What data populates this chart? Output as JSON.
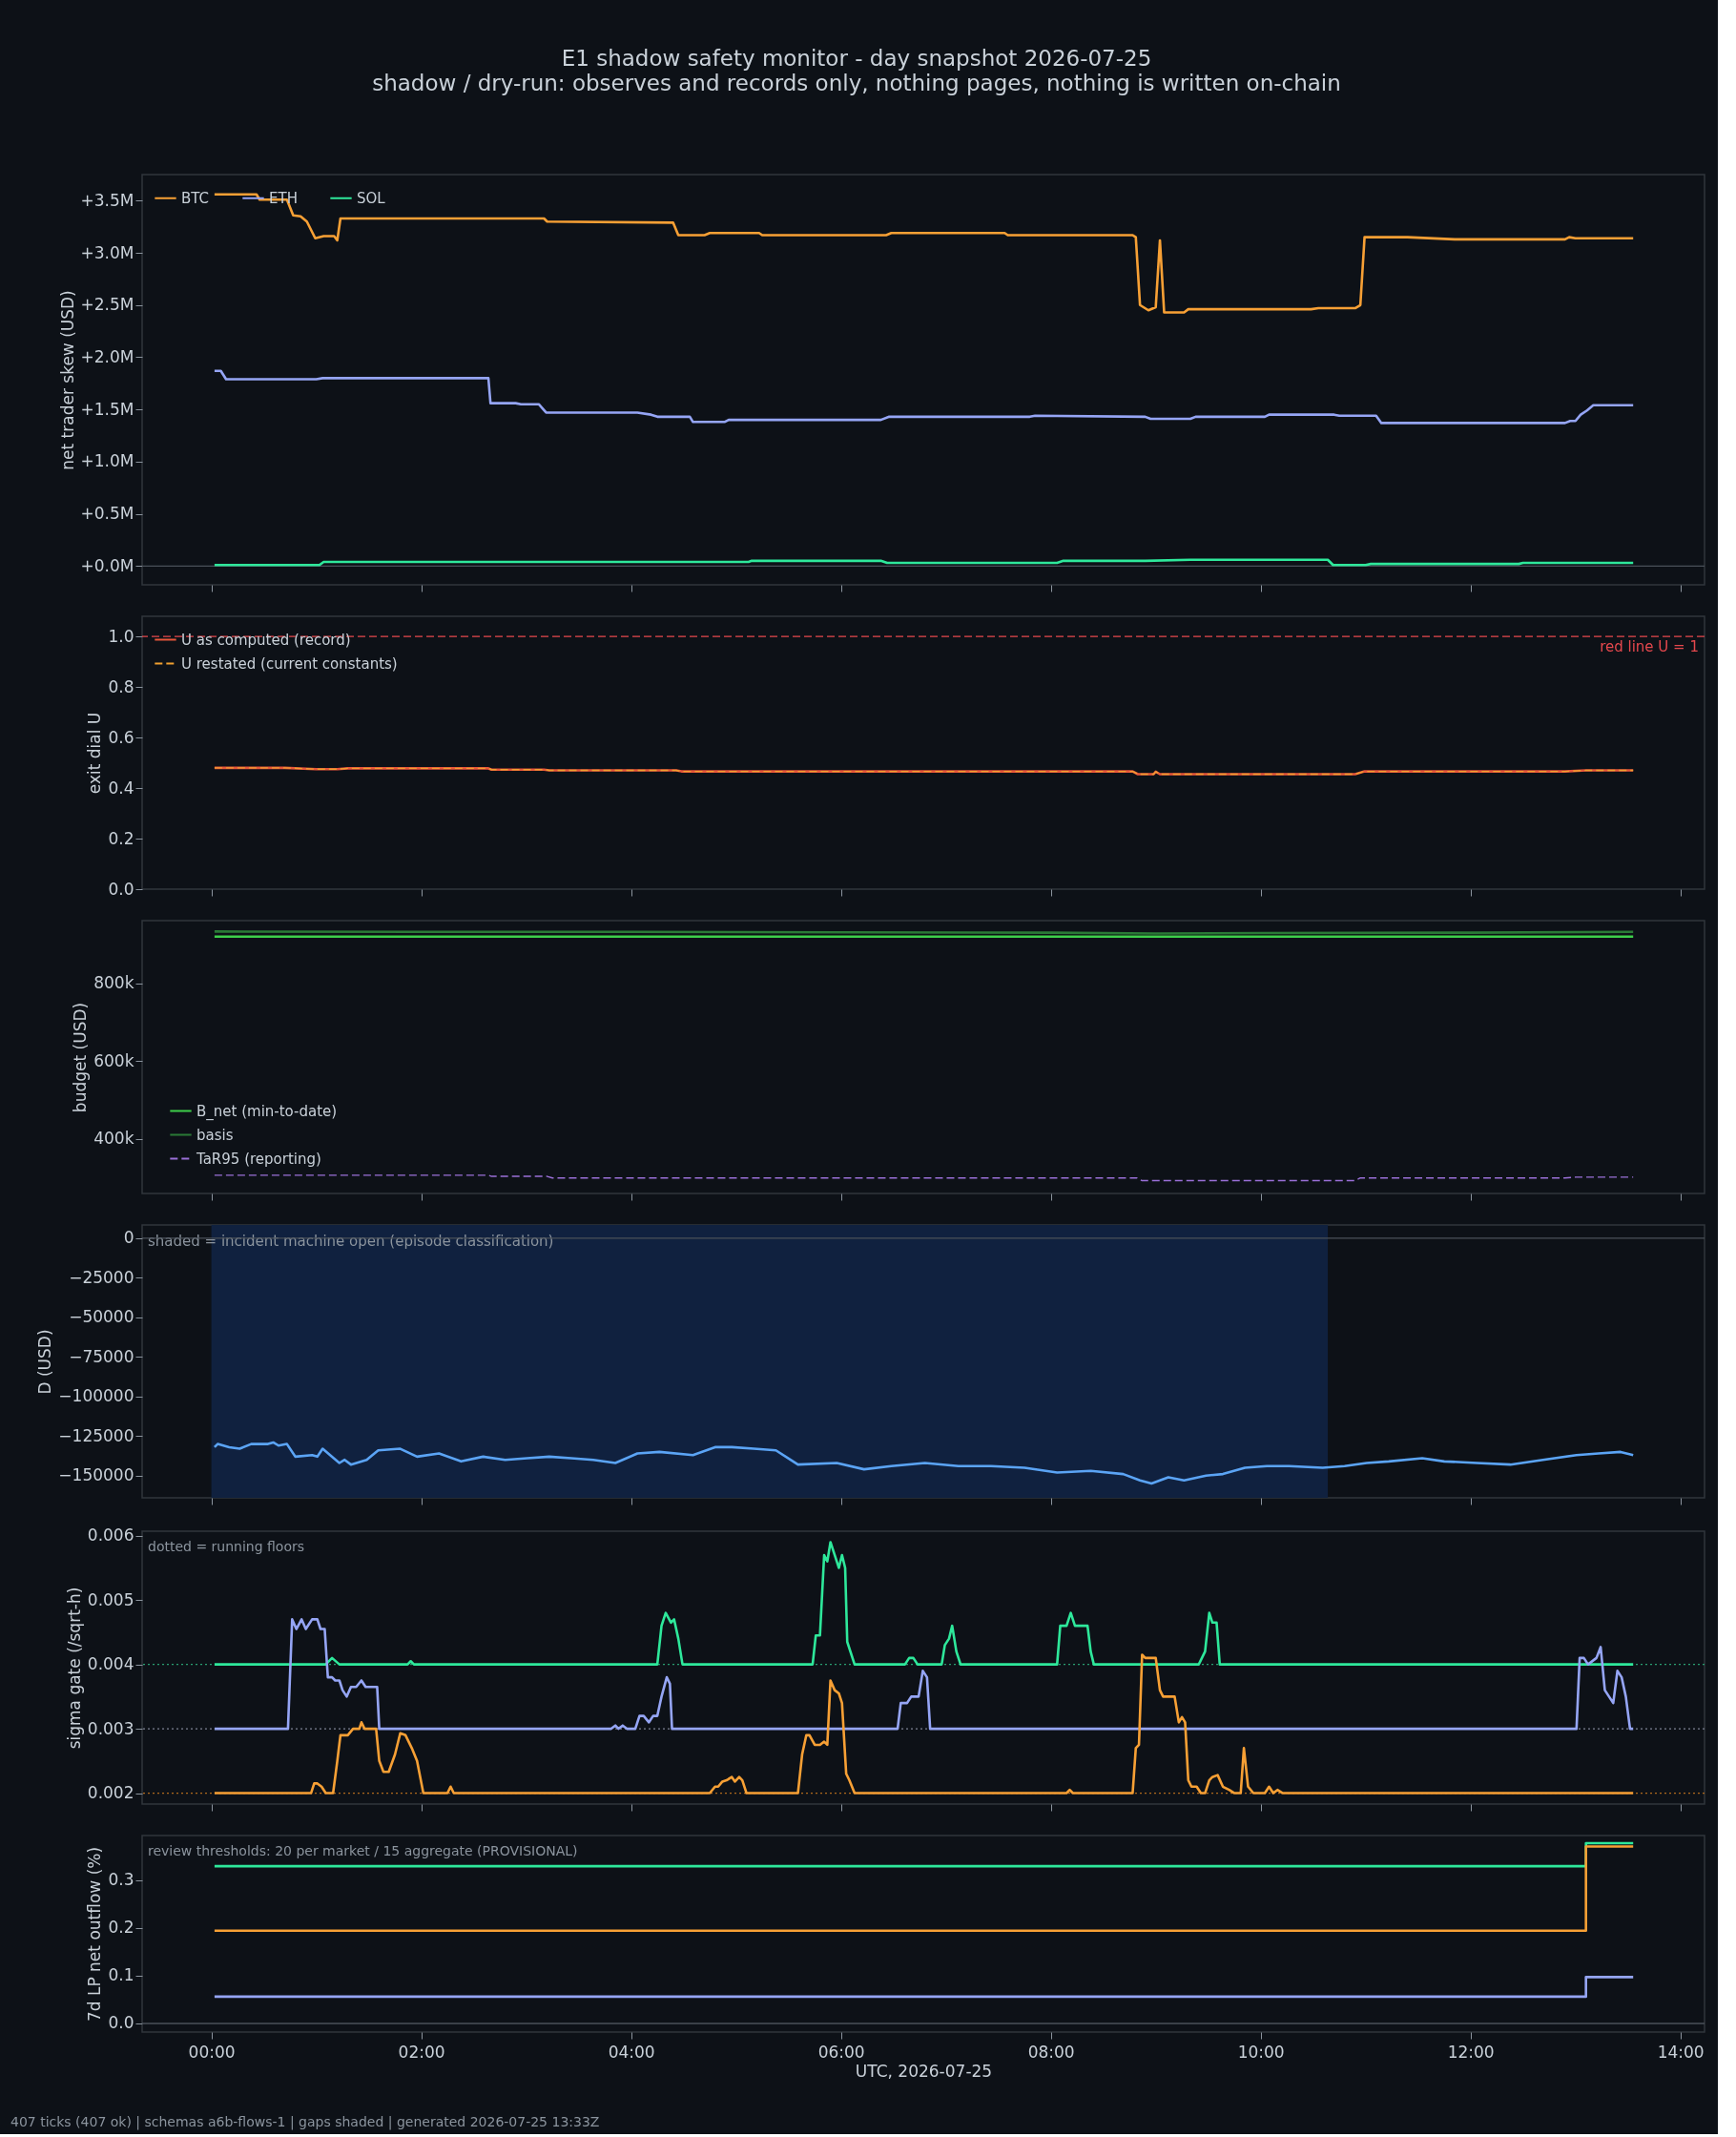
{
  "chart_data": [
    {
      "type": "line",
      "title": "E1 shadow safety monitor - day snapshot 2026-07-25",
      "subtitle": "shadow / dry-run: observes and records only, nothing pages, nothing is written on-chain",
      "ylabel": "net trader skew (USD)",
      "xlim": [
        -0.66,
        14.23
      ],
      "xticks": [
        {
          "value": 0,
          "label": null
        },
        {
          "value": 2,
          "label": null
        },
        {
          "value": 4,
          "label": null
        },
        {
          "value": 6,
          "label": null
        },
        {
          "value": 8,
          "label": null
        },
        {
          "value": 10,
          "label": null
        },
        {
          "value": 12,
          "label": null
        },
        {
          "value": 14,
          "label": null
        }
      ],
      "ylim": [
        -180000,
        3750000
      ],
      "yticks": [
        {
          "value": 0,
          "label": "+0.0M"
        },
        {
          "value": 500000,
          "label": "+0.5M"
        },
        {
          "value": 1000000,
          "label": "+1.0M"
        },
        {
          "value": 1500000,
          "label": "+1.5M"
        },
        {
          "value": 2000000,
          "label": "+2.0M"
        },
        {
          "value": 2500000,
          "label": "+2.5M"
        },
        {
          "value": 3000000,
          "label": "+3.0M"
        },
        {
          "value": 3500000,
          "label": "+3.5M"
        }
      ],
      "tick_labels": "y",
      "legend": "top left",
      "ref_lines": [
        {
          "axis": "y",
          "value": 0,
          "color": "#4a5059"
        }
      ],
      "series": [
        {
          "name": "BTC",
          "color": "#f7a035",
          "x": [
            0.03,
            0.43,
            0.46,
            0.72,
            0.78,
            0.85,
            0.91,
            0.99,
            1.07,
            1.17,
            1.2,
            1.23,
            3.17,
            3.2,
            4.4,
            4.45,
            4.7,
            4.75,
            5.22,
            5.25,
            6.43,
            6.48,
            7.56,
            7.59,
            8.78,
            8.81,
            8.85,
            8.93,
            9.0,
            9.04,
            9.08,
            9.27,
            9.31,
            10.48,
            10.55,
            10.9,
            10.95,
            10.99,
            11.4,
            11.85,
            12.9,
            12.94,
            13.0,
            13.55
          ],
          "values": [
            3560000,
            3560000,
            3510000,
            3510000,
            3360000,
            3350000,
            3300000,
            3140000,
            3160000,
            3160000,
            3120000,
            3330000,
            3330000,
            3300000,
            3290000,
            3170000,
            3170000,
            3190000,
            3190000,
            3170000,
            3170000,
            3190000,
            3190000,
            3170000,
            3170000,
            3150000,
            2500000,
            2450000,
            2480000,
            3120000,
            2430000,
            2430000,
            2460000,
            2460000,
            2470000,
            2470000,
            2500000,
            3150000,
            3150000,
            3130000,
            3130000,
            3150000,
            3140000,
            3140000
          ]
        },
        {
          "name": "ETH",
          "color": "#95a5f5",
          "x": [
            0.03,
            0.09,
            0.14,
            1.0,
            1.06,
            2.64,
            2.66,
            2.9,
            2.95,
            3.12,
            3.19,
            4.06,
            4.19,
            4.25,
            4.56,
            4.59,
            4.89,
            4.93,
            6.38,
            6.46,
            7.8,
            7.85,
            8.9,
            8.95,
            9.33,
            9.38,
            10.04,
            10.08,
            10.7,
            10.75,
            11.1,
            11.15,
            12.9,
            12.95,
            13.0,
            13.05,
            13.11,
            13.17,
            13.55
          ],
          "values": [
            1870000,
            1870000,
            1790000,
            1790000,
            1800000,
            1800000,
            1560000,
            1560000,
            1550000,
            1550000,
            1470000,
            1470000,
            1450000,
            1430000,
            1430000,
            1380000,
            1380000,
            1400000,
            1400000,
            1430000,
            1430000,
            1440000,
            1430000,
            1410000,
            1410000,
            1430000,
            1430000,
            1450000,
            1450000,
            1440000,
            1440000,
            1370000,
            1370000,
            1390000,
            1390000,
            1450000,
            1490000,
            1540000,
            1540000
          ]
        },
        {
          "name": "SOL",
          "color": "#2ee89b",
          "x": [
            0.03,
            1.03,
            1.07,
            5.12,
            5.15,
            6.38,
            6.44,
            8.06,
            8.12,
            8.9,
            9.33,
            10.64,
            10.69,
            11.0,
            11.05,
            12.46,
            12.5,
            13.55
          ],
          "values": [
            10000,
            10000,
            40000,
            40000,
            50000,
            50000,
            30000,
            30000,
            50000,
            50000,
            60000,
            60000,
            10000,
            10000,
            20000,
            20000,
            30000,
            30000
          ]
        }
      ]
    },
    {
      "type": "line",
      "ylabel": "exit dial U",
      "xlim": [
        -0.66,
        14.23
      ],
      "xticks": [
        {
          "value": 0,
          "label": null
        },
        {
          "value": 2,
          "label": null
        },
        {
          "value": 4,
          "label": null
        },
        {
          "value": 6,
          "label": null
        },
        {
          "value": 8,
          "label": null
        },
        {
          "value": 10,
          "label": null
        },
        {
          "value": 12,
          "label": null
        },
        {
          "value": 14,
          "label": null
        }
      ],
      "ylim": [
        0,
        1.08
      ],
      "yticks": [
        {
          "value": 0,
          "label": "0.0"
        },
        {
          "value": 0.2,
          "label": "0.2"
        },
        {
          "value": 0.4,
          "label": "0.4"
        },
        {
          "value": 0.6,
          "label": "0.6"
        },
        {
          "value": 0.8,
          "label": "0.8"
        },
        {
          "value": 1,
          "label": "1.0"
        }
      ],
      "tick_labels": "y",
      "legend": "top left",
      "ref_lines": [
        {
          "axis": "y",
          "value": 1,
          "label": "red line U = 1",
          "color": "#e5484d",
          "line_style": "dashed"
        }
      ],
      "series": [
        {
          "name": "U as computed (record)",
          "color": "#e8563a",
          "x": [
            0.03,
            0.7,
            1.0,
            1.2,
            1.3,
            2.64,
            2.67,
            3.17,
            3.22,
            4.43,
            4.48,
            8.78,
            8.83,
            8.98,
            9.0,
            9.04,
            9.08,
            10.9,
            10.99,
            12.9,
            13.1,
            13.55
          ],
          "values": [
            0.48,
            0.48,
            0.475,
            0.475,
            0.478,
            0.478,
            0.473,
            0.473,
            0.47,
            0.47,
            0.466,
            0.466,
            0.455,
            0.455,
            0.465,
            0.455,
            0.455,
            0.455,
            0.466,
            0.466,
            0.47,
            0.47
          ]
        },
        {
          "name": "U restated (current constants)",
          "color": "#f0a030",
          "line_style": "dashed",
          "x": [
            0.03,
            0.7,
            1.0,
            1.2,
            1.3,
            2.64,
            2.67,
            3.17,
            3.22,
            4.43,
            4.48,
            8.78,
            8.83,
            8.98,
            9.0,
            9.04,
            9.08,
            10.9,
            10.99,
            12.9,
            13.1,
            13.55
          ],
          "values": [
            0.48,
            0.48,
            0.475,
            0.475,
            0.478,
            0.478,
            0.473,
            0.473,
            0.47,
            0.47,
            0.466,
            0.466,
            0.455,
            0.455,
            0.465,
            0.455,
            0.455,
            0.455,
            0.466,
            0.466,
            0.47,
            0.47
          ]
        }
      ]
    },
    {
      "type": "line",
      "ylabel": "budget (USD)",
      "xlim": [
        -0.66,
        14.23
      ],
      "xticks": [
        {
          "value": 0,
          "label": null
        },
        {
          "value": 2,
          "label": null
        },
        {
          "value": 4,
          "label": null
        },
        {
          "value": 6,
          "label": null
        },
        {
          "value": 8,
          "label": null
        },
        {
          "value": 10,
          "label": null
        },
        {
          "value": 12,
          "label": null
        },
        {
          "value": 14,
          "label": null
        }
      ],
      "ylim": [
        259000,
        961000
      ],
      "yticks": [
        {
          "value": 400000,
          "label": "400k"
        },
        {
          "value": 600000,
          "label": "600k"
        },
        {
          "value": 800000,
          "label": "800k"
        }
      ],
      "tick_labels": "y",
      "legend": "bottom left",
      "series": [
        {
          "name": "B_net (min-to-date)",
          "color": "#3ecf4a",
          "x": [
            0.03,
            13.55
          ],
          "values": [
            920000,
            920000
          ]
        },
        {
          "name": "basis",
          "color": "#2a7a36",
          "x": [
            0.03,
            2,
            4,
            6,
            8,
            9,
            10,
            12,
            13.55
          ],
          "values": [
            933000,
            932000,
            932000,
            931000,
            930000,
            928000,
            929000,
            930000,
            932000
          ]
        },
        {
          "name": "TaR95 (reporting)",
          "color": "#9a70d8",
          "line_style": "dashed",
          "x": [
            0.03,
            2.64,
            2.67,
            3.2,
            3.25,
            8.82,
            8.87,
            10.9,
            10.95,
            12.9,
            13.0,
            13.55
          ],
          "values": [
            306000,
            306000,
            303000,
            303000,
            299000,
            299000,
            292000,
            292000,
            299000,
            299000,
            301000,
            301000
          ]
        }
      ]
    },
    {
      "type": "line",
      "ylabel": "D (USD)",
      "xlim": [
        -0.66,
        14.23
      ],
      "xticks": [
        {
          "value": 0,
          "label": null
        },
        {
          "value": 2,
          "label": null
        },
        {
          "value": 4,
          "label": null
        },
        {
          "value": 6,
          "label": null
        },
        {
          "value": 8,
          "label": null
        },
        {
          "value": 10,
          "label": null
        },
        {
          "value": 12,
          "label": null
        },
        {
          "value": 14,
          "label": null
        }
      ],
      "ylim": [
        -164000,
        8400
      ],
      "yticks": [
        {
          "value": -150000,
          "label": "−150000"
        },
        {
          "value": -125000,
          "label": "−125000"
        },
        {
          "value": -100000,
          "label": "−100000"
        },
        {
          "value": -75000,
          "label": "−75000"
        },
        {
          "value": -50000,
          "label": "−50000"
        },
        {
          "value": -25000,
          "label": "−25000"
        },
        {
          "value": 0,
          "label": "0"
        }
      ],
      "tick_labels": "y",
      "bands": [
        {
          "axis": "x",
          "from": 0,
          "to": 10.64,
          "label": "shaded = incident machine open (episode classification)",
          "color": "#10213f"
        }
      ],
      "ref_lines": [
        {
          "axis": "y",
          "value": 0,
          "color": "#4a5059"
        }
      ],
      "series": [
        {
          "color": "#5ba4f5",
          "x": [
            0.03,
            0.06,
            0.17,
            0.27,
            0.38,
            0.54,
            0.59,
            0.64,
            0.72,
            0.8,
            0.96,
            1.01,
            1.06,
            1.22,
            1.27,
            1.33,
            1.48,
            1.59,
            1.8,
            1.96,
            2.17,
            2.38,
            2.59,
            2.8,
            3.01,
            3.22,
            3.43,
            3.64,
            3.85,
            4.06,
            4.27,
            4.59,
            4.8,
            4.96,
            5.17,
            5.38,
            5.59,
            5.96,
            6.22,
            6.48,
            6.8,
            7.12,
            7.43,
            7.75,
            8.06,
            8.38,
            8.69,
            8.85,
            8.96,
            9.12,
            9.27,
            9.48,
            9.64,
            9.85,
            10.06,
            10.27,
            10.59,
            10.8,
            11.01,
            11.22,
            11.54,
            11.75,
            12.06,
            12.38,
            12.69,
            13.01,
            13.22,
            13.43,
            13.55
          ],
          "values": [
            -132000,
            -130000,
            -132000,
            -133000,
            -130000,
            -130000,
            -129000,
            -131000,
            -130000,
            -138000,
            -137000,
            -138000,
            -133000,
            -142000,
            -140000,
            -143000,
            -140000,
            -134000,
            -133000,
            -138000,
            -136000,
            -141000,
            -138000,
            -140000,
            -139000,
            -138000,
            -139000,
            -140000,
            -142000,
            -136000,
            -135000,
            -137000,
            -132000,
            -132000,
            -133000,
            -134000,
            -143000,
            -142000,
            -146000,
            -144000,
            -142000,
            -144000,
            -144000,
            -145000,
            -148000,
            -147000,
            -149000,
            -153000,
            -155000,
            -151000,
            -153000,
            -150000,
            -149000,
            -145000,
            -144000,
            -144000,
            -145000,
            -144000,
            -142000,
            -141000,
            -139000,
            -141000,
            -142000,
            -143000,
            -140000,
            -137000,
            -136000,
            -135000,
            -137000
          ]
        }
      ]
    },
    {
      "type": "line",
      "ylabel": "sigma gate (/sqrt-h)",
      "annotations": [
        "dotted = running floors"
      ],
      "xlim": [
        -0.66,
        14.23
      ],
      "xticks": [
        {
          "value": 0,
          "label": null
        },
        {
          "value": 2,
          "label": null
        },
        {
          "value": 4,
          "label": null
        },
        {
          "value": 6,
          "label": null
        },
        {
          "value": 8,
          "label": null
        },
        {
          "value": 10,
          "label": null
        },
        {
          "value": 12,
          "label": null
        },
        {
          "value": 14,
          "label": null
        }
      ],
      "ylim": [
        0.00183,
        0.00607
      ],
      "yticks": [
        0.002,
        0.003,
        0.004,
        0.005,
        0.006
      ],
      "tick_labels": "y",
      "ref_lines": [
        {
          "axis": "y",
          "value": 0.004,
          "color": "#2a9e70",
          "line_style": "dotted"
        },
        {
          "axis": "y",
          "value": 0.003,
          "color": "#7d8194",
          "line_style": "dotted"
        },
        {
          "axis": "y",
          "value": 0.002,
          "color": "#b06a1c",
          "line_style": "dotted"
        }
      ],
      "series": [
        {
          "color": "#2ee89b",
          "x": [
            0.03,
            1.09,
            1.15,
            1.22,
            1.87,
            1.9,
            1.93,
            4.25,
            4.29,
            4.33,
            4.38,
            4.41,
            4.45,
            4.49,
            5.73,
            5.76,
            5.8,
            5.84,
            5.87,
            5.9,
            5.94,
            5.98,
            6.01,
            6.04,
            6.06,
            6.13,
            6.61,
            6.65,
            6.69,
            6.73,
            6.96,
            6.99,
            7.03,
            7.06,
            7.1,
            7.14,
            8.06,
            8.09,
            8.15,
            8.19,
            8.23,
            8.35,
            8.38,
            8.41,
            9.41,
            9.47,
            9.51,
            9.54,
            9.58,
            9.61,
            13.55
          ],
          "values": [
            0.004,
            0.004,
            0.0041,
            0.004,
            0.004,
            0.00405,
            0.004,
            0.004,
            0.0046,
            0.0048,
            0.00465,
            0.0047,
            0.0044,
            0.004,
            0.004,
            0.00445,
            0.00445,
            0.0057,
            0.0056,
            0.0059,
            0.0057,
            0.0055,
            0.0057,
            0.0055,
            0.00435,
            0.004,
            0.004,
            0.0041,
            0.0041,
            0.004,
            0.004,
            0.0043,
            0.0044,
            0.0046,
            0.0042,
            0.004,
            0.004,
            0.0046,
            0.0046,
            0.0048,
            0.0046,
            0.0046,
            0.0042,
            0.004,
            0.004,
            0.0042,
            0.0048,
            0.00465,
            0.00465,
            0.004,
            0.004
          ]
        },
        {
          "color": "#95a5f5",
          "x": [
            0.03,
            0.73,
            0.77,
            0.81,
            0.86,
            0.9,
            0.96,
            1.01,
            1.04,
            1.08,
            1.11,
            1.15,
            1.18,
            1.22,
            1.25,
            1.29,
            1.33,
            1.38,
            1.43,
            1.47,
            1.58,
            1.6,
            3.81,
            3.85,
            3.88,
            3.92,
            3.96,
            4.04,
            4.08,
            4.12,
            4.17,
            4.21,
            4.25,
            4.29,
            4.34,
            4.37,
            4.39,
            6.54,
            6.57,
            6.63,
            6.67,
            6.74,
            6.78,
            6.82,
            6.85,
            13.01,
            13.04,
            13.08,
            13.12,
            13.2,
            13.24,
            13.28,
            13.32,
            13.36,
            13.4,
            13.44,
            13.48,
            13.52,
            13.55
          ],
          "values": [
            0.003,
            0.003,
            0.0047,
            0.00455,
            0.0047,
            0.00455,
            0.0047,
            0.0047,
            0.00455,
            0.00455,
            0.0038,
            0.0038,
            0.00375,
            0.00375,
            0.0036,
            0.0035,
            0.00365,
            0.00365,
            0.00375,
            0.00365,
            0.00365,
            0.003,
            0.003,
            0.00305,
            0.003,
            0.00305,
            0.003,
            0.003,
            0.0032,
            0.0032,
            0.0031,
            0.0032,
            0.0032,
            0.0035,
            0.0038,
            0.0037,
            0.003,
            0.003,
            0.0034,
            0.0034,
            0.0035,
            0.0035,
            0.0039,
            0.0038,
            0.003,
            0.003,
            0.0041,
            0.0041,
            0.004,
            0.0041,
            0.00427,
            0.0036,
            0.0035,
            0.0034,
            0.0039,
            0.0038,
            0.0035,
            0.003,
            0.003
          ]
        },
        {
          "color": "#f7a035",
          "x": [
            0.03,
            0.95,
            0.98,
            1.01,
            1.05,
            1.09,
            1.16,
            1.2,
            1.23,
            1.3,
            1.35,
            1.41,
            1.43,
            1.46,
            1.57,
            1.6,
            1.64,
            1.69,
            1.75,
            1.8,
            1.85,
            1.91,
            1.96,
            2.02,
            2.25,
            2.28,
            2.31,
            4.75,
            4.8,
            4.83,
            4.87,
            4.91,
            4.96,
            4.99,
            5.03,
            5.06,
            5.1,
            5.59,
            5.63,
            5.67,
            5.7,
            5.75,
            5.8,
            5.84,
            5.87,
            5.9,
            5.94,
            5.98,
            6.01,
            6.05,
            6.08,
            6.13,
            8.15,
            8.18,
            8.21,
            8.78,
            8.81,
            8.84,
            8.87,
            8.9,
            9.0,
            9.04,
            9.07,
            9.18,
            9.22,
            9.25,
            9.28,
            9.31,
            9.34,
            9.39,
            9.43,
            9.47,
            9.51,
            9.54,
            9.59,
            9.64,
            9.7,
            9.75,
            9.81,
            9.84,
            9.88,
            9.93,
            10.04,
            10.08,
            10.12,
            10.16,
            10.21,
            13.55
          ],
          "values": [
            0.002,
            0.002,
            0.00215,
            0.00215,
            0.0021,
            0.002,
            0.002,
            0.0025,
            0.0029,
            0.0029,
            0.003,
            0.003,
            0.0031,
            0.003,
            0.003,
            0.0025,
            0.00233,
            0.00233,
            0.0026,
            0.00293,
            0.0029,
            0.0027,
            0.0025,
            0.002,
            0.002,
            0.0021,
            0.002,
            0.002,
            0.0021,
            0.0021,
            0.00218,
            0.0022,
            0.00225,
            0.00218,
            0.00225,
            0.0022,
            0.002,
            0.002,
            0.0026,
            0.0029,
            0.0029,
            0.00275,
            0.00275,
            0.0028,
            0.00275,
            0.00375,
            0.0036,
            0.00355,
            0.0034,
            0.0023,
            0.0022,
            0.002,
            0.002,
            0.00205,
            0.002,
            0.002,
            0.0027,
            0.00275,
            0.00415,
            0.0041,
            0.0041,
            0.0036,
            0.0035,
            0.0035,
            0.0031,
            0.00318,
            0.0031,
            0.0022,
            0.0021,
            0.0021,
            0.002,
            0.002,
            0.0022,
            0.00225,
            0.00228,
            0.0021,
            0.00205,
            0.002,
            0.002,
            0.0027,
            0.0021,
            0.002,
            0.002,
            0.0021,
            0.002,
            0.00205,
            0.002,
            0.002
          ]
        }
      ]
    },
    {
      "type": "step",
      "ylabel": "7d LP net outflow (%)",
      "xlabel": "UTC, 2026-07-25",
      "annotations": [
        "review thresholds: 20 per market / 15 aggregate (PROVISIONAL)",
        "407 ticks (407 ok) | schemas a6b-flows-1 | gaps shaded | generated 2026-07-25 13:33Z"
      ],
      "xlim": [
        -0.66,
        14.23
      ],
      "xticks": [
        {
          "value": 0,
          "label": "00:00"
        },
        {
          "value": 2,
          "label": "02:00"
        },
        {
          "value": 4,
          "label": "04:00"
        },
        {
          "value": 6,
          "label": "06:00"
        },
        {
          "value": 8,
          "label": "08:00"
        },
        {
          "value": 10,
          "label": "10:00"
        },
        {
          "value": 12,
          "label": "12:00"
        },
        {
          "value": 14,
          "label": "14:00"
        }
      ],
      "ylim": [
        -0.018,
        0.393
      ],
      "yticks": [
        {
          "value": 0,
          "label": "0.0"
        },
        {
          "value": 0.1,
          "label": "0.1"
        },
        {
          "value": 0.2,
          "label": "0.2"
        },
        {
          "value": 0.3,
          "label": "0.3"
        }
      ],
      "ref_lines": [
        {
          "axis": "y",
          "value": 0,
          "color": "#4a5059"
        }
      ],
      "series": [
        {
          "color": "#2ee89b",
          "x": [
            0.03,
            13.1,
            13.55
          ],
          "values": [
            0.329,
            0.377,
            0.377
          ]
        },
        {
          "color": "#f7a035",
          "x": [
            0.03,
            13.1,
            13.55
          ],
          "values": [
            0.194,
            0.37,
            0.37
          ]
        },
        {
          "color": "#95a5f5",
          "x": [
            0.03,
            13.1,
            13.55
          ],
          "values": [
            0.056,
            0.097,
            0.097
          ]
        }
      ]
    }
  ]
}
